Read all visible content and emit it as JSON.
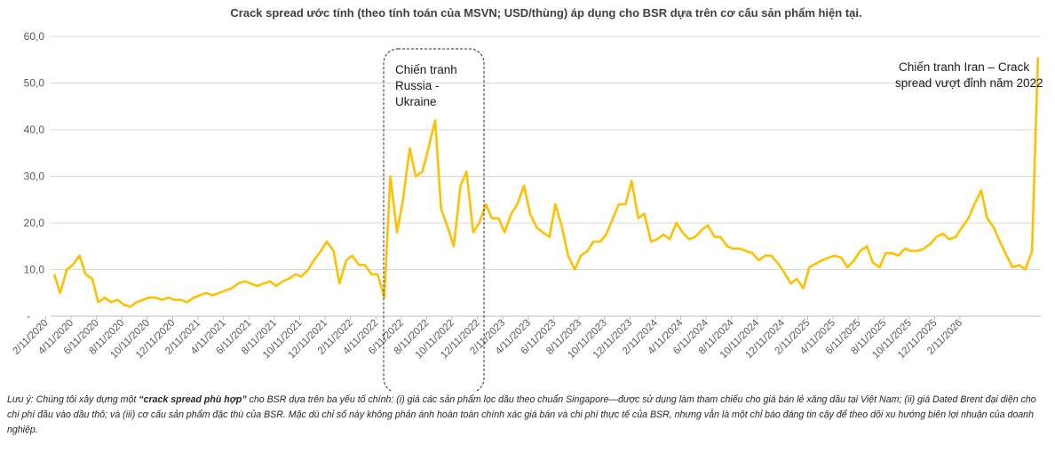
{
  "chart_data": {
    "type": "line",
    "title": "Crack spread ước tính (theo tính toán của MSVN; USD/thùng) áp dụng cho BSR dựa trên cơ cấu sản phẩm hiện tại.",
    "xlabel": "",
    "ylabel": "",
    "ylim": [
      0,
      60
    ],
    "yticks": [
      {
        "value": 0,
        "label": "-"
      },
      {
        "value": 10,
        "label": "10,0"
      },
      {
        "value": 20,
        "label": "20,0"
      },
      {
        "value": 30,
        "label": "30,0"
      },
      {
        "value": 40,
        "label": "40,0"
      },
      {
        "value": 50,
        "label": "50,0"
      },
      {
        "value": 60,
        "label": "60,0"
      }
    ],
    "xticks": [
      "2/11/2020",
      "4/11/2020",
      "6/11/2020",
      "8/11/2020",
      "10/11/2020",
      "12/11/2020",
      "2/11/2021",
      "4/11/2021",
      "6/11/2021",
      "8/11/2021",
      "10/11/2021",
      "12/11/2021",
      "2/11/2022",
      "4/11/2022",
      "6/11/2022",
      "8/11/2022",
      "10/11/2022",
      "12/11/2022",
      "2/11/2023",
      "4/11/2023",
      "6/11/2023",
      "8/11/2023",
      "10/11/2023",
      "12/11/2023",
      "2/11/2024",
      "4/11/2024",
      "6/11/2024",
      "8/11/2024",
      "10/11/2024",
      "12/11/2024",
      "2/11/2025",
      "4/11/2025",
      "6/11/2025",
      "8/11/2025",
      "10/11/2025",
      "12/11/2025",
      "2/11/2026"
    ],
    "grid": true,
    "legend": "none",
    "line_color": "#FFC000",
    "series": [
      {
        "points": [
          [
            "2020-03-01",
            9
          ],
          [
            "2020-03-15",
            5
          ],
          [
            "2020-04-01",
            10
          ],
          [
            "2020-04-15",
            11
          ],
          [
            "2020-05-01",
            13
          ],
          [
            "2020-05-15",
            9
          ],
          [
            "2020-06-01",
            8
          ],
          [
            "2020-06-15",
            3
          ],
          [
            "2020-07-01",
            4
          ],
          [
            "2020-07-15",
            3
          ],
          [
            "2020-08-01",
            3.5
          ],
          [
            "2020-08-15",
            2.5
          ],
          [
            "2020-09-01",
            2
          ],
          [
            "2020-09-15",
            3
          ],
          [
            "2020-10-01",
            3.5
          ],
          [
            "2020-10-15",
            4
          ],
          [
            "2020-11-01",
            4
          ],
          [
            "2020-11-15",
            3.5
          ],
          [
            "2020-12-01",
            4
          ],
          [
            "2020-12-15",
            3.5
          ],
          [
            "2021-01-01",
            3.5
          ],
          [
            "2021-01-15",
            3
          ],
          [
            "2021-02-01",
            4
          ],
          [
            "2021-02-15",
            4.5
          ],
          [
            "2021-03-01",
            5
          ],
          [
            "2021-03-15",
            4.5
          ],
          [
            "2021-04-01",
            5
          ],
          [
            "2021-04-15",
            5.5
          ],
          [
            "2021-05-01",
            6
          ],
          [
            "2021-05-15",
            7
          ],
          [
            "2021-06-01",
            7.5
          ],
          [
            "2021-06-15",
            7
          ],
          [
            "2021-07-01",
            6.5
          ],
          [
            "2021-07-15",
            7
          ],
          [
            "2021-08-01",
            7.5
          ],
          [
            "2021-08-15",
            6.5
          ],
          [
            "2021-09-01",
            7.5
          ],
          [
            "2021-09-15",
            8
          ],
          [
            "2021-10-01",
            9
          ],
          [
            "2021-10-15",
            8.5
          ],
          [
            "2021-11-01",
            10
          ],
          [
            "2021-11-15",
            12
          ],
          [
            "2021-12-01",
            14
          ],
          [
            "2021-12-15",
            16
          ],
          [
            "2022-01-01",
            14
          ],
          [
            "2022-01-15",
            7
          ],
          [
            "2022-02-01",
            12
          ],
          [
            "2022-02-15",
            13
          ],
          [
            "2022-03-01",
            11
          ],
          [
            "2022-03-15",
            11
          ],
          [
            "2022-04-01",
            9
          ],
          [
            "2022-04-15",
            9
          ],
          [
            "2022-05-01",
            4
          ],
          [
            "2022-05-15",
            30
          ],
          [
            "2022-06-01",
            18
          ],
          [
            "2022-06-15",
            25
          ],
          [
            "2022-07-01",
            36
          ],
          [
            "2022-07-15",
            30
          ],
          [
            "2022-08-01",
            31
          ],
          [
            "2022-08-15",
            36
          ],
          [
            "2022-09-01",
            42
          ],
          [
            "2022-09-15",
            23
          ],
          [
            "2022-10-01",
            19
          ],
          [
            "2022-10-15",
            15
          ],
          [
            "2022-11-01",
            28
          ],
          [
            "2022-11-15",
            31
          ],
          [
            "2022-12-01",
            18
          ],
          [
            "2022-12-15",
            20
          ],
          [
            "2023-01-01",
            24
          ],
          [
            "2023-01-15",
            21
          ],
          [
            "2023-02-01",
            21
          ],
          [
            "2023-02-15",
            18
          ],
          [
            "2023-03-01",
            22
          ],
          [
            "2023-03-15",
            24
          ],
          [
            "2023-04-01",
            28
          ],
          [
            "2023-04-15",
            22
          ],
          [
            "2023-05-01",
            19
          ],
          [
            "2023-05-15",
            18
          ],
          [
            "2023-06-01",
            17
          ],
          [
            "2023-06-15",
            24
          ],
          [
            "2023-07-01",
            19
          ],
          [
            "2023-07-15",
            13
          ],
          [
            "2023-08-01",
            10
          ],
          [
            "2023-08-15",
            13
          ],
          [
            "2023-09-01",
            14
          ],
          [
            "2023-09-15",
            16
          ],
          [
            "2023-10-01",
            16
          ],
          [
            "2023-10-15",
            17.5
          ],
          [
            "2023-11-01",
            21
          ],
          [
            "2023-11-15",
            24
          ],
          [
            "2023-12-01",
            24
          ],
          [
            "2023-12-15",
            29
          ],
          [
            "2024-01-01",
            21
          ],
          [
            "2024-01-15",
            22
          ],
          [
            "2024-02-01",
            16
          ],
          [
            "2024-02-15",
            16.5
          ],
          [
            "2024-03-01",
            17.5
          ],
          [
            "2024-03-15",
            16.5
          ],
          [
            "2024-04-01",
            20
          ],
          [
            "2024-04-15",
            18
          ],
          [
            "2024-05-01",
            16.5
          ],
          [
            "2024-05-15",
            17
          ],
          [
            "2024-06-01",
            18.5
          ],
          [
            "2024-06-15",
            19.5
          ],
          [
            "2024-07-01",
            17
          ],
          [
            "2024-07-15",
            17
          ],
          [
            "2024-08-01",
            15
          ],
          [
            "2024-08-15",
            14.5
          ],
          [
            "2024-09-01",
            14.5
          ],
          [
            "2024-09-15",
            14
          ],
          [
            "2024-10-01",
            13.5
          ],
          [
            "2024-10-15",
            12
          ],
          [
            "2024-11-01",
            13
          ],
          [
            "2024-11-15",
            13
          ],
          [
            "2024-12-01",
            11.3
          ],
          [
            "2024-12-15",
            9.5
          ],
          [
            "2025-01-01",
            7
          ],
          [
            "2025-01-15",
            8
          ],
          [
            "2025-02-01",
            6
          ],
          [
            "2025-02-15",
            10.5
          ],
          [
            "2025-03-01",
            11.3
          ],
          [
            "2025-03-15",
            12
          ],
          [
            "2025-04-01",
            12.6
          ],
          [
            "2025-04-15",
            13
          ],
          [
            "2025-05-01",
            12.5
          ],
          [
            "2025-05-15",
            10.5
          ],
          [
            "2025-06-01",
            12
          ],
          [
            "2025-06-15",
            14
          ],
          [
            "2025-07-01",
            15
          ],
          [
            "2025-07-15",
            11.5
          ],
          [
            "2025-08-01",
            10.5
          ],
          [
            "2025-08-15",
            13.5
          ],
          [
            "2025-09-01",
            13.5
          ],
          [
            "2025-09-15",
            13
          ],
          [
            "2025-10-01",
            14.5
          ],
          [
            "2025-10-15",
            14
          ],
          [
            "2025-11-01",
            14
          ],
          [
            "2025-11-15",
            14.5
          ],
          [
            "2025-12-01",
            15.5
          ],
          [
            "2025-12-15",
            17
          ],
          [
            "2026-01-01",
            17.7
          ],
          [
            "2026-01-15",
            16.5
          ],
          [
            "2026-02-01",
            17
          ],
          [
            "2026-02-15",
            19
          ],
          [
            "2026-03-01",
            21
          ],
          [
            "2026-03-15",
            24
          ],
          [
            "2026-04-01",
            27
          ],
          [
            "2026-04-15",
            21
          ],
          [
            "2026-05-01",
            19
          ],
          [
            "2026-05-15",
            16
          ],
          [
            "2026-06-01",
            13
          ],
          [
            "2026-06-15",
            10.5
          ],
          [
            "2026-07-01",
            11
          ],
          [
            "2026-07-15",
            10
          ],
          [
            "2026-08-01",
            14
          ],
          [
            "2026-08-15",
            55.5
          ]
        ]
      }
    ],
    "annotations": [
      {
        "lines": [
          "Chiến tranh",
          "Russia -",
          "Ukraine"
        ],
        "boxed": true
      },
      {
        "lines": [
          "Chiến tranh Iran – Crack",
          "spread vượt đỉnh năm 2022"
        ],
        "boxed": false
      }
    ]
  },
  "note": {
    "prefix": "Lưu ý: Chúng tôi xây dựng một ",
    "bold": "“crack spread phù hợp”",
    "suffix": " cho BSR dựa trên ba yếu tố chính: (i) giá các sản phẩm lọc dầu theo chuẩn Singapore—được sử dụng làm tham chiếu cho giá bán lẻ xăng dầu tại Việt Nam; (ii) giá Dated Brent đại diện cho chi phí đầu vào dầu thô; và (iii) cơ cấu sản phẩm đặc thù của BSR. Mặc dù chỉ số này không phản ánh hoàn toàn chính xác giá bán và chi phí thực tế của BSR, nhưng vẫn là một chỉ báo đáng tin cậy để theo dõi xu hướng biên lợi nhuận của doanh nghiệp."
  }
}
